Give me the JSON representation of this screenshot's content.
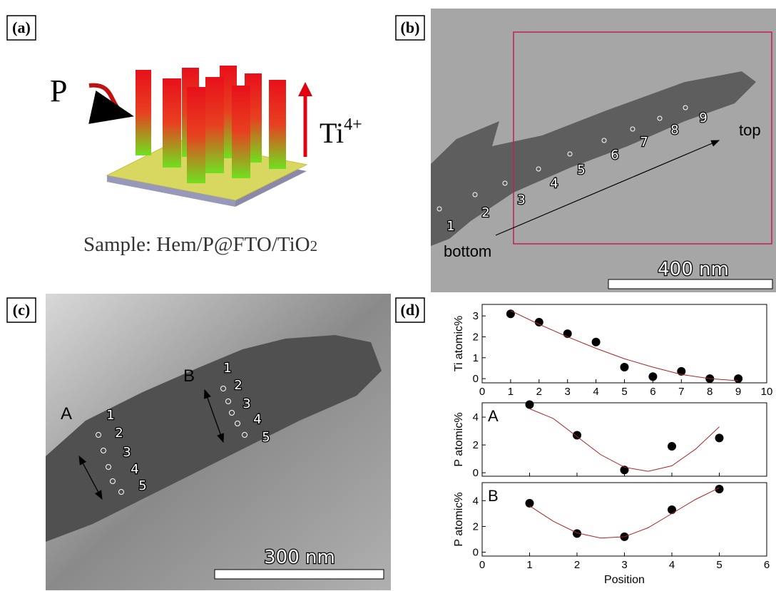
{
  "panels": {
    "a": {
      "label": "(a)",
      "p": "P",
      "ti": "Ti",
      "ti_sup": "4+",
      "sample": "Sample: Hem/P@FTO/TiO",
      "sample_sub": "2"
    },
    "b": {
      "label": "(b)",
      "markers": [
        "1",
        "2",
        "3",
        "4",
        "5",
        "6",
        "7",
        "8",
        "9"
      ],
      "top": "top",
      "bottom": "bottom",
      "scale": "400 nm"
    },
    "c": {
      "label": "(c)",
      "a": "A",
      "b": "B",
      "markers_a": [
        "1",
        "2",
        "3",
        "4",
        "5"
      ],
      "markers_b": [
        "1",
        "2",
        "3",
        "4",
        "5"
      ],
      "scale": "300 nm"
    },
    "d": {
      "label": "(d)"
    }
  },
  "chart_data": [
    {
      "type": "scatter",
      "ylabel": "Ti atomic%",
      "xlim": [
        0,
        10
      ],
      "xticks": [
        0,
        1,
        2,
        3,
        4,
        5,
        6,
        7,
        8,
        9,
        10
      ],
      "show_xticklabels": true,
      "ylim": [
        -0.2,
        3.55
      ],
      "yticks": [
        0,
        1,
        2,
        3
      ],
      "series": [
        {
          "style": "dots",
          "color": "#000000",
          "x": [
            1,
            2,
            3,
            4,
            5,
            6,
            7,
            8,
            9
          ],
          "values": [
            3.1,
            2.7,
            2.15,
            1.75,
            0.55,
            0.1,
            0.35,
            0.0,
            0.0
          ]
        },
        {
          "style": "line",
          "color": "#b22222",
          "x": [
            1,
            2,
            3,
            4,
            5,
            6,
            7,
            8,
            9
          ],
          "values": [
            3.25,
            2.6,
            2.0,
            1.45,
            0.95,
            0.55,
            0.2,
            0.0,
            -0.1
          ]
        }
      ]
    },
    {
      "type": "scatter",
      "ylabel": "P atomic%",
      "annotation": "A",
      "xlim": [
        0,
        6
      ],
      "xticks": [
        0,
        1,
        2,
        3,
        4,
        5,
        6
      ],
      "show_xticklabels": false,
      "ylim": [
        -0.25,
        5.03
      ],
      "yticks": [
        0,
        2,
        4
      ],
      "series": [
        {
          "style": "dots",
          "color": "#000000",
          "x": [
            1,
            2,
            3,
            4,
            5
          ],
          "values": [
            4.9,
            2.7,
            0.2,
            1.9,
            2.5
          ]
        },
        {
          "style": "line",
          "color": "#b22222",
          "x": [
            1,
            1.5,
            2,
            2.5,
            3,
            3.5,
            4,
            4.5,
            5
          ],
          "values": [
            4.6,
            3.9,
            2.6,
            1.3,
            0.4,
            0.1,
            0.5,
            1.7,
            3.3
          ]
        }
      ]
    },
    {
      "type": "scatter",
      "ylabel": "P atomic%",
      "xlabel": "Position",
      "annotation": "B",
      "xlim": [
        0,
        6
      ],
      "xticks": [
        0,
        1,
        2,
        3,
        4,
        5,
        6
      ],
      "show_xticklabels": true,
      "ylim": [
        -0.3,
        5.4
      ],
      "yticks": [
        0,
        2,
        4
      ],
      "series": [
        {
          "style": "dots",
          "color": "#000000",
          "x": [
            1,
            2,
            3,
            4,
            5
          ],
          "values": [
            3.8,
            1.45,
            1.2,
            3.3,
            4.9
          ]
        },
        {
          "style": "line",
          "color": "#b22222",
          "x": [
            1,
            1.5,
            2,
            2.5,
            3,
            3.5,
            4,
            4.5,
            5
          ],
          "values": [
            3.6,
            2.4,
            1.5,
            1.1,
            1.2,
            1.9,
            3.0,
            4.1,
            5.0
          ]
        }
      ]
    }
  ]
}
